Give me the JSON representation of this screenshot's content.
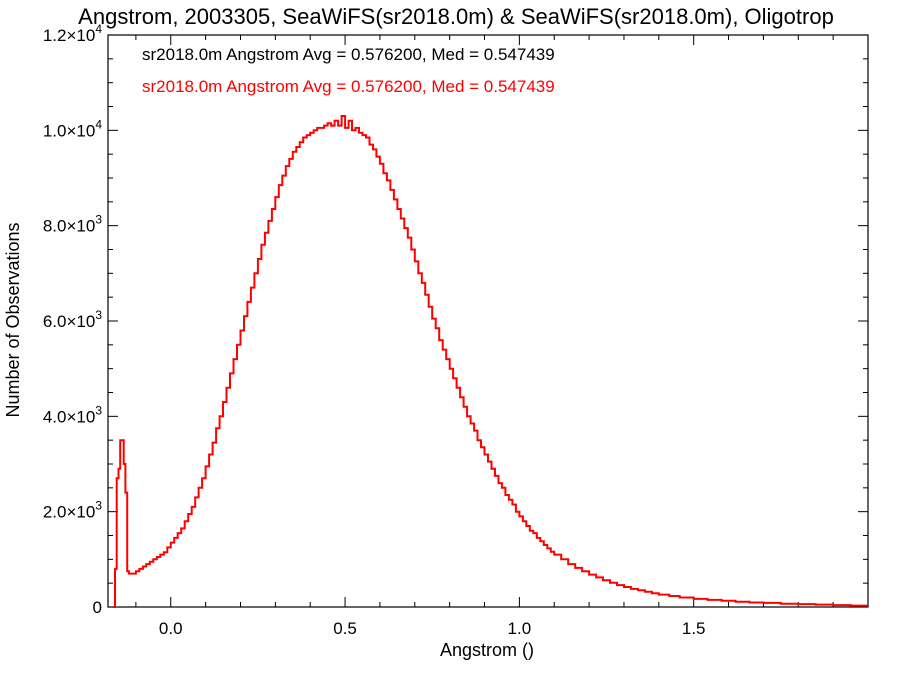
{
  "chart_data": {
    "type": "histogram",
    "title": "Angstrom, 2003305, SeaWiFS(sr2018.0m) & SeaWiFS(sr2018.0m), Oligotrop",
    "xlabel": "Angstrom ()",
    "ylabel": "Number of Observations",
    "xlim": [
      -0.18,
      2.0
    ],
    "ylim": [
      0,
      12000
    ],
    "x_ticks": [
      0.0,
      0.5,
      1.0,
      1.5
    ],
    "x_tick_labels": [
      "0.0",
      "0.5",
      "1.0",
      "1.5"
    ],
    "y_ticks": [
      0,
      2000,
      4000,
      6000,
      8000,
      10000,
      12000
    ],
    "y_tick_labels": [
      {
        "mantissa": "0",
        "exp": ""
      },
      {
        "mantissa": "2.0×10",
        "exp": "3"
      },
      {
        "mantissa": "4.0×10",
        "exp": "3"
      },
      {
        "mantissa": "6.0×10",
        "exp": "3"
      },
      {
        "mantissa": "8.0×10",
        "exp": "3"
      },
      {
        "mantissa": "1.0×10",
        "exp": "4"
      },
      {
        "mantissa": "1.2×10",
        "exp": "4"
      }
    ],
    "grid": false,
    "legend": [
      {
        "text": "sr2018.0m Angstrom Avg = 0.576200, Med = 0.547439",
        "color": "#000000"
      },
      {
        "text": "sr2018.0m Angstrom Avg = 0.576200, Med = 0.547439",
        "color": "#ff0000"
      }
    ],
    "series": [
      {
        "color": "#ff0000",
        "points": [
          [
            -0.165,
            0
          ],
          [
            -0.16,
            800
          ],
          [
            -0.155,
            2700
          ],
          [
            -0.15,
            2900
          ],
          [
            -0.145,
            3500
          ],
          [
            -0.14,
            3500
          ],
          [
            -0.135,
            3000
          ],
          [
            -0.13,
            2400
          ],
          [
            -0.125,
            750
          ],
          [
            -0.12,
            700
          ],
          [
            -0.11,
            700
          ],
          [
            -0.1,
            750
          ],
          [
            -0.09,
            800
          ],
          [
            -0.08,
            850
          ],
          [
            -0.07,
            900
          ],
          [
            -0.06,
            950
          ],
          [
            -0.05,
            1000
          ],
          [
            -0.04,
            1050
          ],
          [
            -0.03,
            1100
          ],
          [
            -0.02,
            1150
          ],
          [
            -0.01,
            1250
          ],
          [
            0.0,
            1350
          ],
          [
            0.01,
            1450
          ],
          [
            0.02,
            1550
          ],
          [
            0.03,
            1650
          ],
          [
            0.04,
            1800
          ],
          [
            0.05,
            1950
          ],
          [
            0.06,
            2100
          ],
          [
            0.07,
            2300
          ],
          [
            0.08,
            2500
          ],
          [
            0.09,
            2700
          ],
          [
            0.1,
            2950
          ],
          [
            0.11,
            3200
          ],
          [
            0.12,
            3450
          ],
          [
            0.13,
            3750
          ],
          [
            0.14,
            4000
          ],
          [
            0.15,
            4300
          ],
          [
            0.16,
            4600
          ],
          [
            0.17,
            4900
          ],
          [
            0.18,
            5200
          ],
          [
            0.19,
            5500
          ],
          [
            0.2,
            5800
          ],
          [
            0.21,
            6100
          ],
          [
            0.22,
            6400
          ],
          [
            0.23,
            6700
          ],
          [
            0.24,
            7000
          ],
          [
            0.25,
            7300
          ],
          [
            0.26,
            7600
          ],
          [
            0.27,
            7850
          ],
          [
            0.28,
            8100
          ],
          [
            0.29,
            8350
          ],
          [
            0.3,
            8600
          ],
          [
            0.31,
            8850
          ],
          [
            0.32,
            9050
          ],
          [
            0.33,
            9250
          ],
          [
            0.34,
            9400
          ],
          [
            0.35,
            9550
          ],
          [
            0.36,
            9650
          ],
          [
            0.37,
            9750
          ],
          [
            0.38,
            9850
          ],
          [
            0.39,
            9900
          ],
          [
            0.4,
            9950
          ],
          [
            0.41,
            10000
          ],
          [
            0.42,
            10050
          ],
          [
            0.43,
            10050
          ],
          [
            0.44,
            10100
          ],
          [
            0.45,
            10150
          ],
          [
            0.46,
            10100
          ],
          [
            0.47,
            10200
          ],
          [
            0.48,
            10100
          ],
          [
            0.49,
            10300
          ],
          [
            0.5,
            10050
          ],
          [
            0.51,
            10200
          ],
          [
            0.52,
            10000
          ],
          [
            0.53,
            10050
          ],
          [
            0.54,
            9950
          ],
          [
            0.55,
            9900
          ],
          [
            0.56,
            9850
          ],
          [
            0.57,
            9700
          ],
          [
            0.58,
            9600
          ],
          [
            0.59,
            9450
          ],
          [
            0.6,
            9300
          ],
          [
            0.61,
            9100
          ],
          [
            0.62,
            8950
          ],
          [
            0.63,
            8750
          ],
          [
            0.64,
            8550
          ],
          [
            0.65,
            8350
          ],
          [
            0.66,
            8150
          ],
          [
            0.67,
            7950
          ],
          [
            0.68,
            7750
          ],
          [
            0.69,
            7500
          ],
          [
            0.7,
            7250
          ],
          [
            0.71,
            7000
          ],
          [
            0.72,
            6800
          ],
          [
            0.73,
            6550
          ],
          [
            0.74,
            6300
          ],
          [
            0.75,
            6050
          ],
          [
            0.76,
            5850
          ],
          [
            0.77,
            5600
          ],
          [
            0.78,
            5400
          ],
          [
            0.79,
            5200
          ],
          [
            0.8,
            5000
          ],
          [
            0.81,
            4800
          ],
          [
            0.82,
            4600
          ],
          [
            0.83,
            4400
          ],
          [
            0.84,
            4200
          ],
          [
            0.85,
            4000
          ],
          [
            0.86,
            3850
          ],
          [
            0.87,
            3700
          ],
          [
            0.88,
            3500
          ],
          [
            0.89,
            3350
          ],
          [
            0.9,
            3200
          ],
          [
            0.91,
            3050
          ],
          [
            0.92,
            2900
          ],
          [
            0.93,
            2750
          ],
          [
            0.94,
            2600
          ],
          [
            0.95,
            2500
          ],
          [
            0.96,
            2350
          ],
          [
            0.97,
            2250
          ],
          [
            0.98,
            2150
          ],
          [
            0.99,
            2000
          ],
          [
            1.0,
            1900
          ],
          [
            1.01,
            1800
          ],
          [
            1.02,
            1700
          ],
          [
            1.03,
            1600
          ],
          [
            1.04,
            1550
          ],
          [
            1.05,
            1450
          ],
          [
            1.06,
            1380
          ],
          [
            1.07,
            1300
          ],
          [
            1.08,
            1230
          ],
          [
            1.09,
            1160
          ],
          [
            1.1,
            1100
          ],
          [
            1.12,
            1000
          ],
          [
            1.14,
            900
          ],
          [
            1.16,
            820
          ],
          [
            1.18,
            750
          ],
          [
            1.2,
            680
          ],
          [
            1.22,
            620
          ],
          [
            1.24,
            560
          ],
          [
            1.26,
            510
          ],
          [
            1.28,
            460
          ],
          [
            1.3,
            420
          ],
          [
            1.32,
            380
          ],
          [
            1.34,
            350
          ],
          [
            1.36,
            320
          ],
          [
            1.38,
            290
          ],
          [
            1.4,
            260
          ],
          [
            1.43,
            230
          ],
          [
            1.46,
            200
          ],
          [
            1.5,
            170
          ],
          [
            1.54,
            150
          ],
          [
            1.58,
            130
          ],
          [
            1.62,
            110
          ],
          [
            1.66,
            95
          ],
          [
            1.7,
            85
          ],
          [
            1.75,
            70
          ],
          [
            1.8,
            60
          ],
          [
            1.85,
            50
          ],
          [
            1.9,
            40
          ],
          [
            1.95,
            30
          ],
          [
            2.0,
            30
          ]
        ]
      }
    ]
  }
}
